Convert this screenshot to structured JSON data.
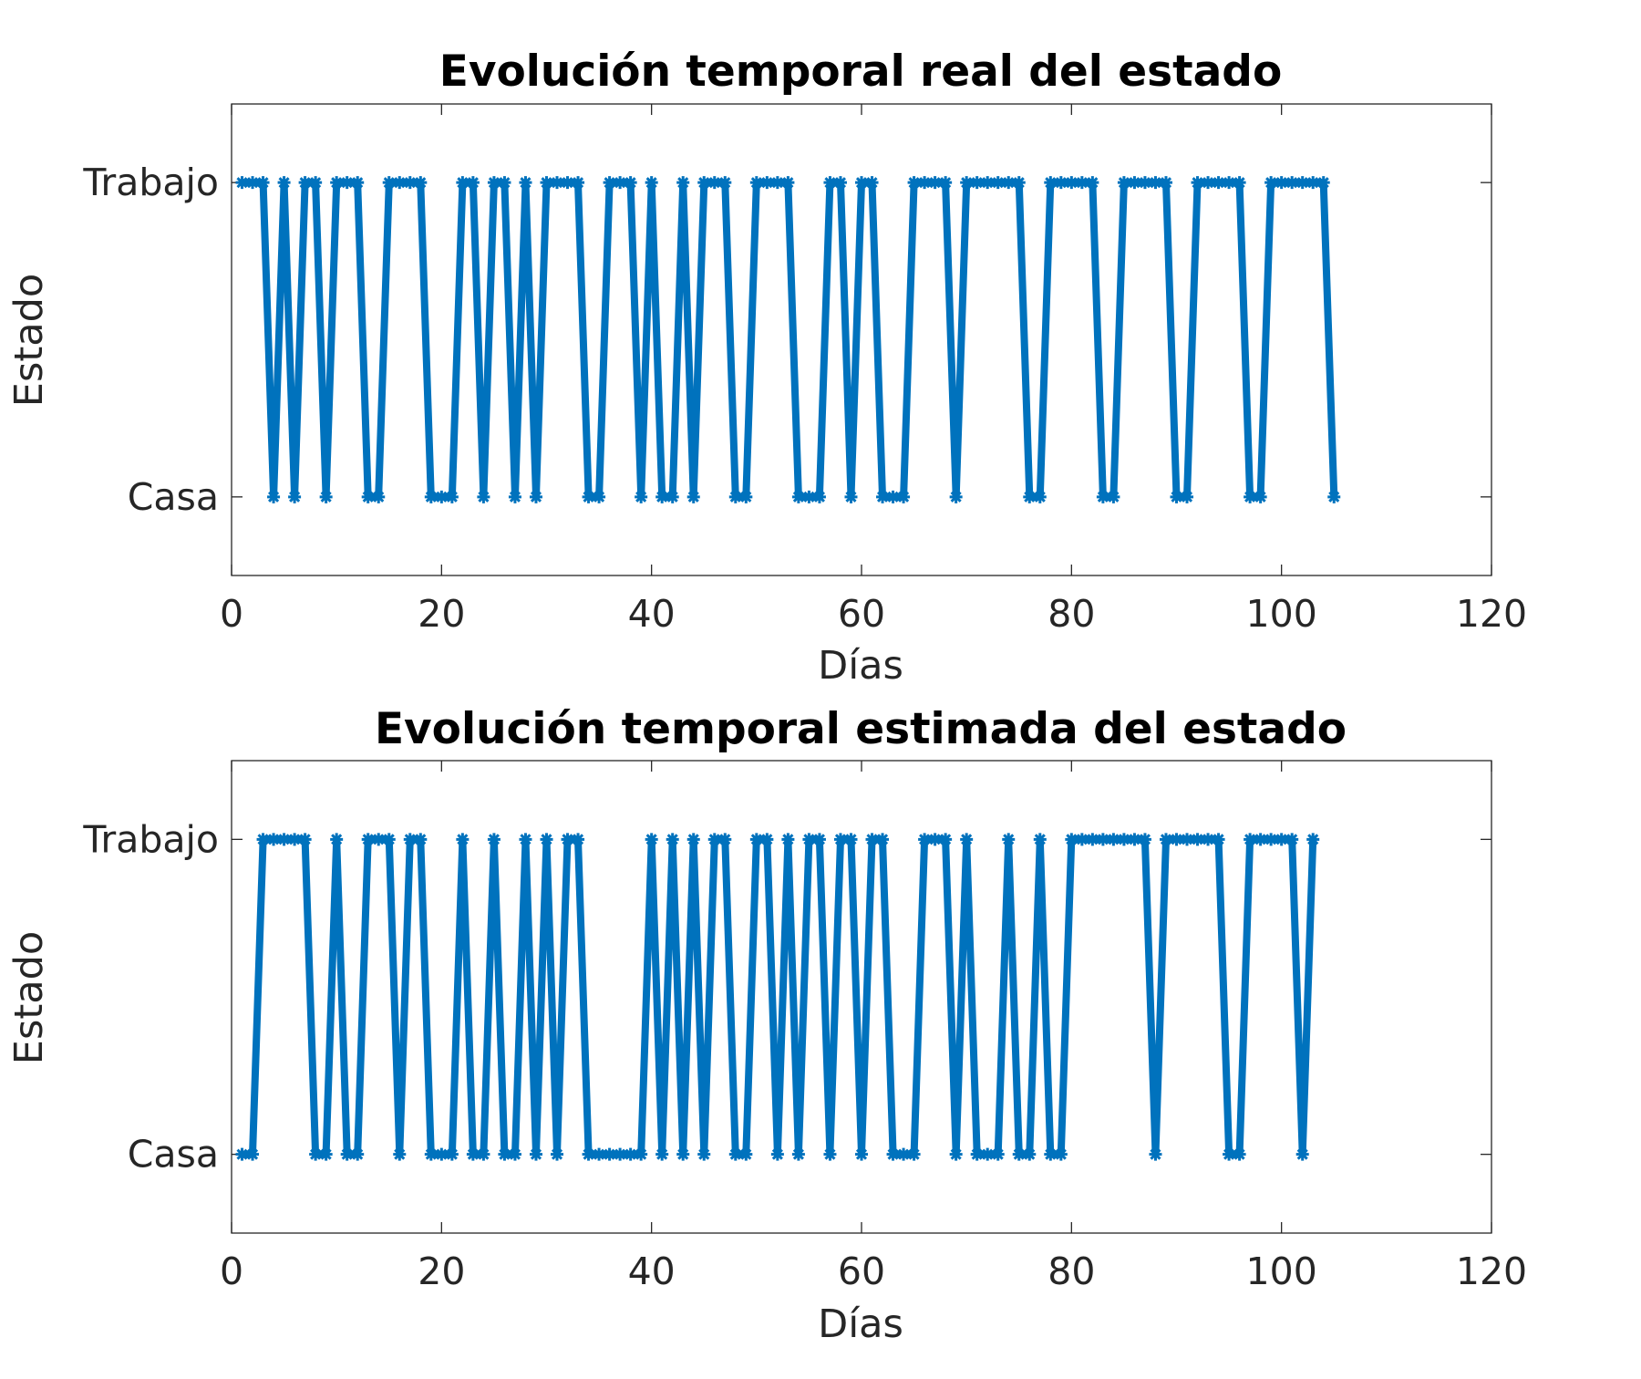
{
  "chart_data": [
    {
      "type": "line",
      "title": "Evolución temporal real del estado",
      "xlabel": "Días",
      "ylabel": "Estado",
      "xlim": [
        0,
        120
      ],
      "ylim": [
        0.75,
        2.25
      ],
      "xticks": [
        0,
        20,
        40,
        60,
        80,
        100,
        120
      ],
      "ytick_labels": [
        {
          "value": 1,
          "label": "Casa"
        },
        {
          "value": 2,
          "label": "Trabajo"
        }
      ],
      "grid": false,
      "color": "#0072BD",
      "marker": "asterisk",
      "series": [
        {
          "x": [
            1,
            2,
            3,
            4,
            5,
            6,
            7,
            8,
            9,
            10,
            11,
            12,
            13,
            14,
            15,
            16,
            17,
            18,
            19,
            20,
            21,
            22,
            23,
            24,
            25,
            26,
            27,
            28,
            29,
            30,
            31,
            32,
            33,
            34,
            35,
            36,
            37,
            38,
            39,
            40,
            41,
            42,
            43,
            44,
            45,
            46,
            47,
            48,
            49,
            50,
            51,
            52,
            53,
            54,
            55,
            56,
            57,
            58,
            59,
            60,
            61,
            62,
            63,
            64,
            65,
            66,
            67,
            68,
            69,
            70,
            71,
            72,
            73,
            74,
            75,
            76,
            77,
            78,
            79,
            80,
            81,
            82,
            83,
            84,
            85,
            86,
            87,
            88,
            89,
            90,
            91,
            92,
            93,
            94,
            95,
            96,
            97,
            98,
            99,
            100,
            101,
            102,
            103,
            104,
            105
          ],
          "y": [
            2,
            2,
            2,
            1,
            2,
            1,
            2,
            2,
            1,
            2,
            2,
            2,
            1,
            1,
            2,
            2,
            2,
            2,
            1,
            1,
            1,
            2,
            2,
            1,
            2,
            2,
            1,
            2,
            1,
            2,
            2,
            2,
            2,
            1,
            1,
            2,
            2,
            2,
            1,
            2,
            1,
            1,
            2,
            1,
            2,
            2,
            2,
            1,
            1,
            2,
            2,
            2,
            2,
            1,
            1,
            1,
            2,
            2,
            1,
            2,
            2,
            1,
            1,
            1,
            2,
            2,
            2,
            2,
            1,
            2,
            2,
            2,
            2,
            2,
            2,
            1,
            1,
            2,
            2,
            2,
            2,
            2,
            1,
            1,
            2,
            2,
            2,
            2,
            2,
            1,
            1,
            2,
            2,
            2,
            2,
            2,
            1,
            1,
            2,
            2,
            2,
            2,
            2,
            2,
            1
          ]
        }
      ]
    },
    {
      "type": "line",
      "title": "Evolución temporal estimada del estado",
      "xlabel": "Días",
      "ylabel": "Estado",
      "xlim": [
        0,
        120
      ],
      "ylim": [
        0.75,
        2.25
      ],
      "xticks": [
        0,
        20,
        40,
        60,
        80,
        100,
        120
      ],
      "ytick_labels": [
        {
          "value": 1,
          "label": "Casa"
        },
        {
          "value": 2,
          "label": "Trabajo"
        }
      ],
      "grid": false,
      "color": "#0072BD",
      "marker": "asterisk",
      "series": [
        {
          "x": [
            1,
            2,
            3,
            4,
            5,
            6,
            7,
            8,
            9,
            10,
            11,
            12,
            13,
            14,
            15,
            16,
            17,
            18,
            19,
            20,
            21,
            22,
            23,
            24,
            25,
            26,
            27,
            28,
            29,
            30,
            31,
            32,
            33,
            34,
            35,
            36,
            37,
            38,
            39,
            40,
            41,
            42,
            43,
            44,
            45,
            46,
            47,
            48,
            49,
            50,
            51,
            52,
            53,
            54,
            55,
            56,
            57,
            58,
            59,
            60,
            61,
            62,
            63,
            64,
            65,
            66,
            67,
            68,
            69,
            70,
            71,
            72,
            73,
            74,
            75,
            76,
            77,
            78,
            79,
            80,
            81,
            82,
            83,
            84,
            85,
            86,
            87,
            88,
            89,
            90,
            91,
            92,
            93,
            94,
            95,
            96,
            97,
            98,
            99,
            100,
            101,
            102,
            103
          ],
          "y": [
            1,
            1,
            2,
            2,
            2,
            2,
            2,
            1,
            1,
            2,
            1,
            1,
            2,
            2,
            2,
            1,
            2,
            2,
            1,
            1,
            1,
            2,
            1,
            1,
            2,
            1,
            1,
            2,
            1,
            2,
            1,
            2,
            2,
            1,
            1,
            1,
            1,
            1,
            1,
            2,
            1,
            2,
            1,
            2,
            1,
            2,
            2,
            1,
            1,
            2,
            2,
            1,
            2,
            1,
            2,
            2,
            1,
            2,
            2,
            1,
            2,
            2,
            1,
            1,
            1,
            2,
            2,
            2,
            1,
            2,
            1,
            1,
            1,
            2,
            1,
            1,
            2,
            1,
            1,
            2,
            2,
            2,
            2,
            2,
            2,
            2,
            2,
            1,
            2,
            2,
            2,
            2,
            2,
            2,
            1,
            1,
            2,
            2,
            2,
            2,
            2,
            1,
            2
          ]
        }
      ]
    }
  ]
}
